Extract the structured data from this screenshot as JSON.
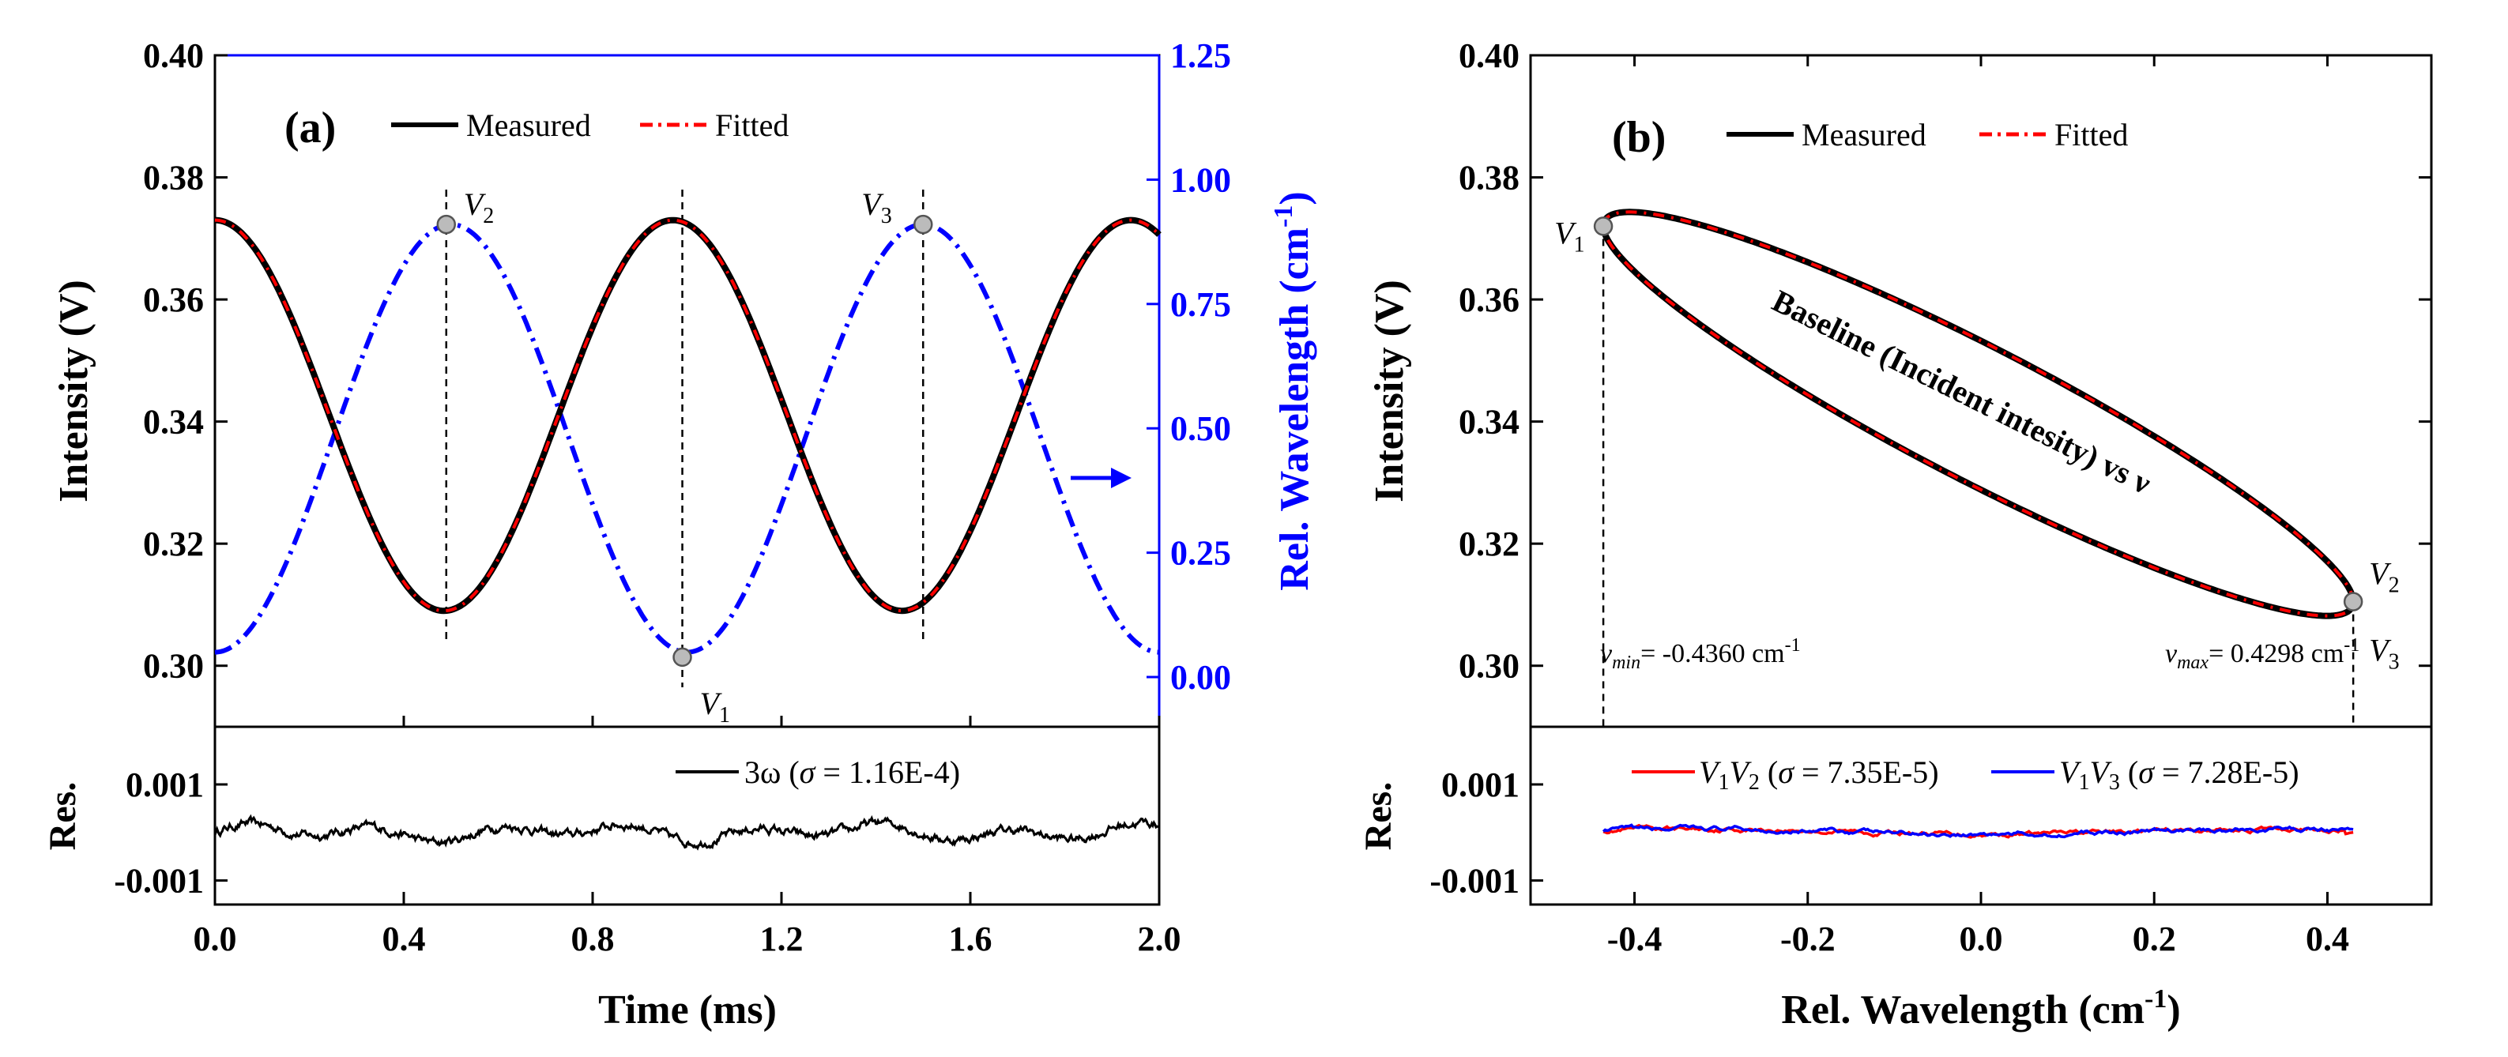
{
  "chart_data": [
    {
      "panel_label": "(a)",
      "type": "line",
      "xlabel": "Time (ms)",
      "xlim": [
        0.0,
        2.0
      ],
      "xticks": [
        "0.0",
        "0.4",
        "0.8",
        "1.2",
        "1.6",
        "2.0"
      ],
      "ylabel_left": "Intensity (V)",
      "ylim_left": [
        0.29,
        0.4
      ],
      "yticks_left": [
        "0.30",
        "0.32",
        "0.34",
        "0.36",
        "0.38",
        "0.40"
      ],
      "ylabel_right": "Rel. Wavelength (cm",
      "ylabel_right_sup": "-1",
      "ylabel_right_close": ")",
      "ylim_right": [
        -0.1,
        1.25
      ],
      "yticks_right": [
        "0.00",
        "0.25",
        "0.50",
        "0.75",
        "1.00",
        "1.25"
      ],
      "legend": [
        "Measured",
        "Fitted"
      ],
      "series": [
        {
          "name": "Measured",
          "color": "#000000",
          "axis": "left",
          "model": "intensity",
          "mean": 0.341,
          "amplitude": 0.032,
          "period_ms": 0.97,
          "x_max": 0.97
        },
        {
          "name": "Fitted",
          "color": "#ff0000",
          "axis": "left",
          "model": "intensity",
          "mean": 0.341,
          "amplitude": 0.032,
          "period_ms": 0.97,
          "x_max": 0.97
        },
        {
          "name": "Rel. Wavelength",
          "color": "#0000ff",
          "axis": "right",
          "model": "wavelength",
          "mean": 0.48,
          "amplitude": 0.43,
          "period_ms": 1.0,
          "x_max": 0.5
        }
      ],
      "markers": [
        {
          "label": "V",
          "sub": "2",
          "x": 0.49,
          "y_right": 0.91
        },
        {
          "label": "V",
          "sub": "1",
          "x": 0.99,
          "y_right": 0.04
        },
        {
          "label": "V",
          "sub": "3",
          "x": 1.5,
          "y_right": 0.91
        }
      ],
      "arrow_axis": "right",
      "residual": {
        "ylabel": "Res.",
        "ylim": [
          -0.0015,
          0.0022
        ],
        "yticks": [
          "0.001",
          "-0.001"
        ],
        "legend_main": "3ω (",
        "legend_sigma": "σ",
        "legend_tail": " = 1.16E-4)",
        "series": [
          {
            "name": "3ω",
            "color": "#000000",
            "sigma": 0.000116
          }
        ]
      }
    },
    {
      "panel_label": "(b)",
      "type": "line",
      "xlabel": "Rel. Wavelength (cm",
      "xlabel_sup": "-1",
      "xlabel_close": ")",
      "xlim": [
        -0.52,
        0.52
      ],
      "xticks": [
        "-0.4",
        "-0.2",
        "0.0",
        "0.2",
        "0.4"
      ],
      "ylabel": "Intensity (V)",
      "ylim": [
        0.29,
        0.4
      ],
      "yticks": [
        "0.30",
        "0.32",
        "0.34",
        "0.36",
        "0.38",
        "0.40"
      ],
      "legend": [
        "Measured",
        "Fitted"
      ],
      "series": [
        {
          "name": "Measured",
          "color": "#000000"
        },
        {
          "name": "Fitted",
          "color": "#ff0000"
        }
      ],
      "ellipse": {
        "nu_min": -0.436,
        "nu_max": 0.4298,
        "i_at_min": 0.372,
        "i_at_max": 0.3105,
        "half_width": 0.0122
      },
      "annotation": "Baseline (Incident intesity) vs ν",
      "markers": [
        {
          "label": "V",
          "sub": "1",
          "x": -0.436,
          "y": 0.372
        },
        {
          "label": "V",
          "sub": "2",
          "x": 0.4298,
          "y": 0.3105
        },
        {
          "label": "V",
          "sub": "3",
          "x": 0.4298,
          "y": 0.3105
        }
      ],
      "nu_min_text": {
        "symbol": "ν",
        "sub": "min",
        "value": "= -0.4360 cm",
        "sup": "-1"
      },
      "nu_max_text": {
        "symbol": "ν",
        "sub": "max",
        "value": "= 0.4298 cm",
        "sup": "-1"
      },
      "residual": {
        "ylabel": "Res.",
        "ylim": [
          -0.0015,
          0.0022
        ],
        "yticks": [
          "0.001",
          "-0.001"
        ],
        "legend": [
          {
            "a": "V",
            "a_sub": "1",
            "b": "V",
            "b_sub": "2",
            "open": " (",
            "sigma": "σ",
            "tail": " = 7.35E-5)",
            "color": "#ff0000"
          },
          {
            "a": "V",
            "a_sub": "1",
            "b": "V",
            "b_sub": "3",
            "open": " (",
            "sigma": "σ",
            "tail": " = 7.28E-5)",
            "color": "#0000ff"
          }
        ],
        "series": [
          {
            "name": "V1V2",
            "color": "#ff0000",
            "sigma": 7.35e-05
          },
          {
            "name": "V1V3",
            "color": "#0000ff",
            "sigma": 7.28e-05
          }
        ]
      }
    }
  ]
}
